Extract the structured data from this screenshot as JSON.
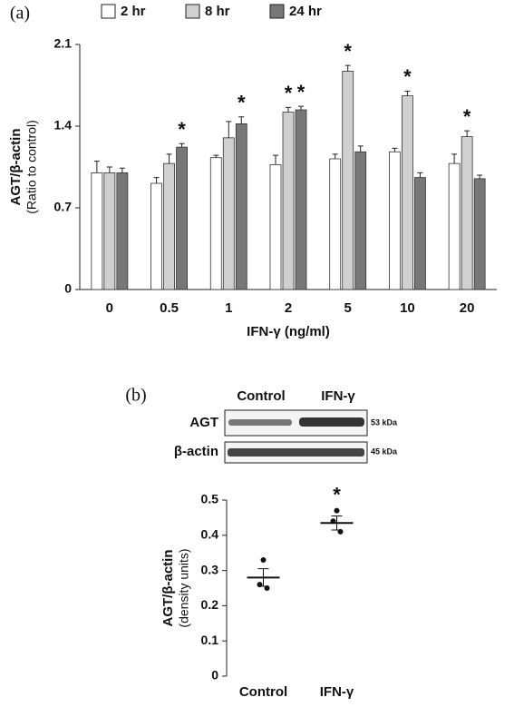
{
  "chart_data": [
    {
      "type": "bar",
      "panel_label": "(a)",
      "ylabel": "AGT/β-actin",
      "ylabel_sub": "(Ratio to control)",
      "xlabel": "IFN-γ (ng/ml)",
      "categories": [
        "0",
        "0.5",
        "1",
        "2",
        "5",
        "10",
        "20"
      ],
      "series": [
        {
          "name": "2 hr",
          "color": "#ffffff",
          "values": [
            1.0,
            0.91,
            1.13,
            1.07,
            1.12,
            1.18,
            1.08
          ],
          "errors": [
            0.1,
            0.05,
            0.02,
            0.08,
            0.04,
            0.03,
            0.08
          ],
          "significant": [
            false,
            false,
            false,
            false,
            false,
            false,
            false
          ]
        },
        {
          "name": "8 hr",
          "color": "#d0d0d0",
          "values": [
            1.0,
            1.08,
            1.3,
            1.52,
            1.87,
            1.66,
            1.31
          ],
          "errors": [
            0.05,
            0.08,
            0.14,
            0.04,
            0.05,
            0.04,
            0.05
          ],
          "significant": [
            false,
            false,
            false,
            true,
            true,
            true,
            true
          ]
        },
        {
          "name": "24 hr",
          "color": "#777777",
          "values": [
            1.0,
            1.22,
            1.42,
            1.54,
            1.18,
            0.96,
            0.95
          ],
          "errors": [
            0.04,
            0.03,
            0.06,
            0.03,
            0.05,
            0.04,
            0.03
          ],
          "significant": [
            false,
            true,
            true,
            true,
            false,
            false,
            false
          ]
        }
      ],
      "significance_marker": "*",
      "ylim": [
        0,
        2.1
      ],
      "yticks": [
        0,
        0.7,
        1.4,
        2.1
      ]
    },
    {
      "type": "dot",
      "panel_label": "(b)",
      "ylabel": "AGT/β-actin",
      "ylabel_sub": "(density units)",
      "categories": [
        "Control",
        "IFN-γ"
      ],
      "points": [
        [
          0.33,
          0.26,
          0.25
        ],
        [
          0.47,
          0.44,
          0.41
        ]
      ],
      "means": [
        0.28,
        0.435
      ],
      "errors": [
        0.025,
        0.02
      ],
      "significant": [
        false,
        true
      ],
      "significance_marker": "*",
      "color": "#111111",
      "ylim": [
        0,
        0.5
      ],
      "yticks": [
        0,
        0.1,
        0.2,
        0.3,
        0.4,
        0.5
      ]
    }
  ],
  "blot": {
    "lanes": [
      "Control",
      "IFN-γ"
    ],
    "rows": [
      {
        "label": "AGT",
        "size": "53 kDa"
      },
      {
        "label": "β-actin",
        "size": "45 kDa"
      }
    ]
  }
}
